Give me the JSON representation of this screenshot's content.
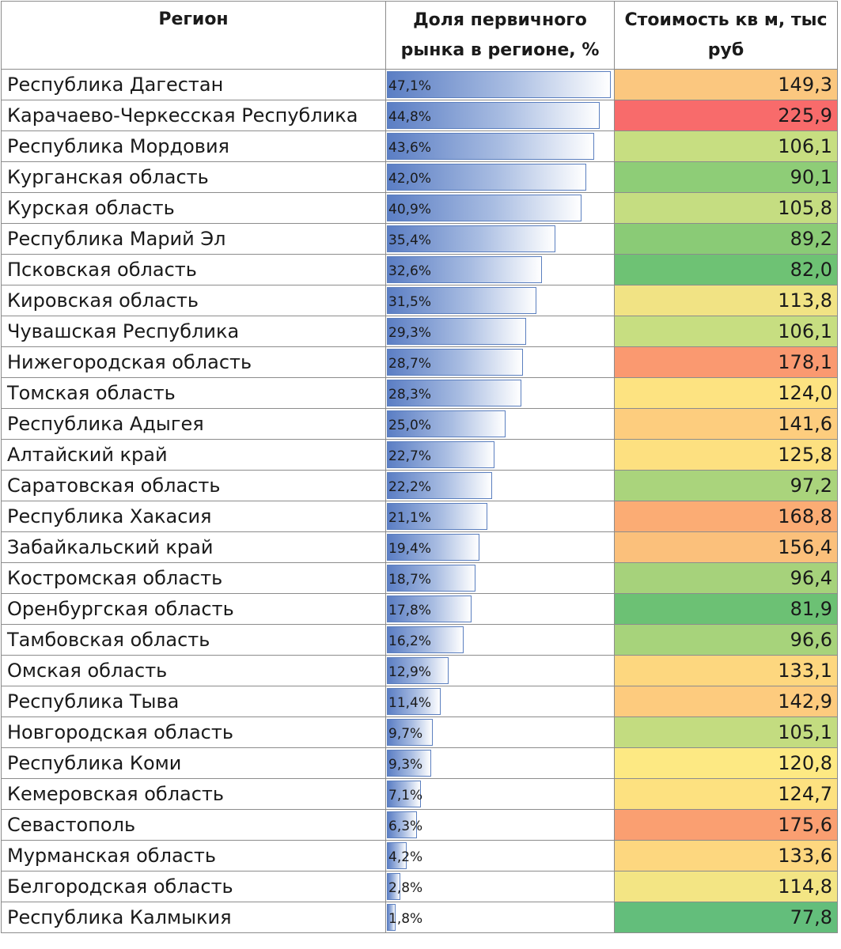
{
  "headers": {
    "region": "Регион",
    "share": "Доля первичного рынка в регионе, %",
    "cost": "Стоимость кв м, тыс руб"
  },
  "bar_max_percent": 47.1,
  "rows": [
    {
      "region": "Республика Дагестан",
      "share_label": "47,1%",
      "share": 47.1,
      "cost": "149,3",
      "color": "#fbc77f"
    },
    {
      "region": "Карачаево-Черкесская Республика",
      "share_label": "44,8%",
      "share": 44.8,
      "cost": "225,9",
      "color": "#f86b6b"
    },
    {
      "region": "Республика Мордовия",
      "share_label": "43,6%",
      "share": 43.6,
      "cost": "106,1",
      "color": "#c7de81"
    },
    {
      "region": "Курганская область",
      "share_label": "42,0%",
      "share": 42.0,
      "cost": "90,1",
      "color": "#8ecd77"
    },
    {
      "region": "Курская область",
      "share_label": "40,9%",
      "share": 40.9,
      "cost": "105,8",
      "color": "#c5dd81"
    },
    {
      "region": "Республика Марий Эл",
      "share_label": "35,4%",
      "share": 35.4,
      "cost": "89,2",
      "color": "#8acb76"
    },
    {
      "region": "Псковская область",
      "share_label": "32,6%",
      "share": 32.6,
      "cost": "82,0",
      "color": "#6ec274"
    },
    {
      "region": "Кировская область",
      "share_label": "31,5%",
      "share": 31.5,
      "cost": "113,8",
      "color": "#f1e384"
    },
    {
      "region": "Чувашская Республика",
      "share_label": "29,3%",
      "share": 29.3,
      "cost": "106,1",
      "color": "#c7de81"
    },
    {
      "region": "Нижегородская область",
      "share_label": "28,7%",
      "share": 28.7,
      "cost": "178,1",
      "color": "#fa9970"
    },
    {
      "region": "Томская область",
      "share_label": "28,3%",
      "share": 28.3,
      "cost": "124,0",
      "color": "#fde381"
    },
    {
      "region": "Республика Адыгея",
      "share_label": "25,0%",
      "share": 25.0,
      "cost": "141,6",
      "color": "#fdcd7e"
    },
    {
      "region": "Алтайский край",
      "share_label": "22,7%",
      "share": 22.7,
      "cost": "125,8",
      "color": "#fde080"
    },
    {
      "region": "Саратовская область",
      "share_label": "22,2%",
      "share": 22.2,
      "cost": "97,2",
      "color": "#aad47c"
    },
    {
      "region": "Республика Хакасия",
      "share_label": "21,1%",
      "share": 21.1,
      "cost": "168,8",
      "color": "#fbac74"
    },
    {
      "region": "Забайкальский край",
      "share_label": "19,4%",
      "share": 19.4,
      "cost": "156,4",
      "color": "#fbc07b"
    },
    {
      "region": "Костромская область",
      "share_label": "18,7%",
      "share": 18.7,
      "cost": "96,4",
      "color": "#a6d27b"
    },
    {
      "region": "Оренбургская область",
      "share_label": "17,8%",
      "share": 17.8,
      "cost": "81,9",
      "color": "#6cc174"
    },
    {
      "region": "Тамбовская область",
      "share_label": "16,2%",
      "share": 16.2,
      "cost": "96,6",
      "color": "#a7d37b"
    },
    {
      "region": "Омская область",
      "share_label": "12,9%",
      "share": 12.9,
      "cost": "133,1",
      "color": "#fdd77f"
    },
    {
      "region": "Республика Тыва",
      "share_label": "11,4%",
      "share": 11.4,
      "cost": "142,9",
      "color": "#fdcb7e"
    },
    {
      "region": "Новгородская область",
      "share_label": "9,7%",
      "share": 9.7,
      "cost": "105,1",
      "color": "#c3dc80"
    },
    {
      "region": "Республика Коми",
      "share_label": "9,3%",
      "share": 9.3,
      "cost": "120,8",
      "color": "#fde983"
    },
    {
      "region": "Кемеровская область",
      "share_label": "7,1%",
      "share": 7.1,
      "cost": "124,7",
      "color": "#fde180"
    },
    {
      "region": "Севастополь",
      "share_label": "6,3%",
      "share": 6.3,
      "cost": "175,6",
      "color": "#fa9f71"
    },
    {
      "region": "Мурманская область",
      "share_label": "4,2%",
      "share": 4.2,
      "cost": "133,6",
      "color": "#fdd77f"
    },
    {
      "region": "Белгородская область",
      "share_label": "2,8%",
      "share": 2.8,
      "cost": "114,8",
      "color": "#f3e584"
    },
    {
      "region": "Республика Калмыкия",
      "share_label": "1,8%",
      "share": 1.8,
      "cost": "77,8",
      "color": "#63be7b"
    }
  ]
}
